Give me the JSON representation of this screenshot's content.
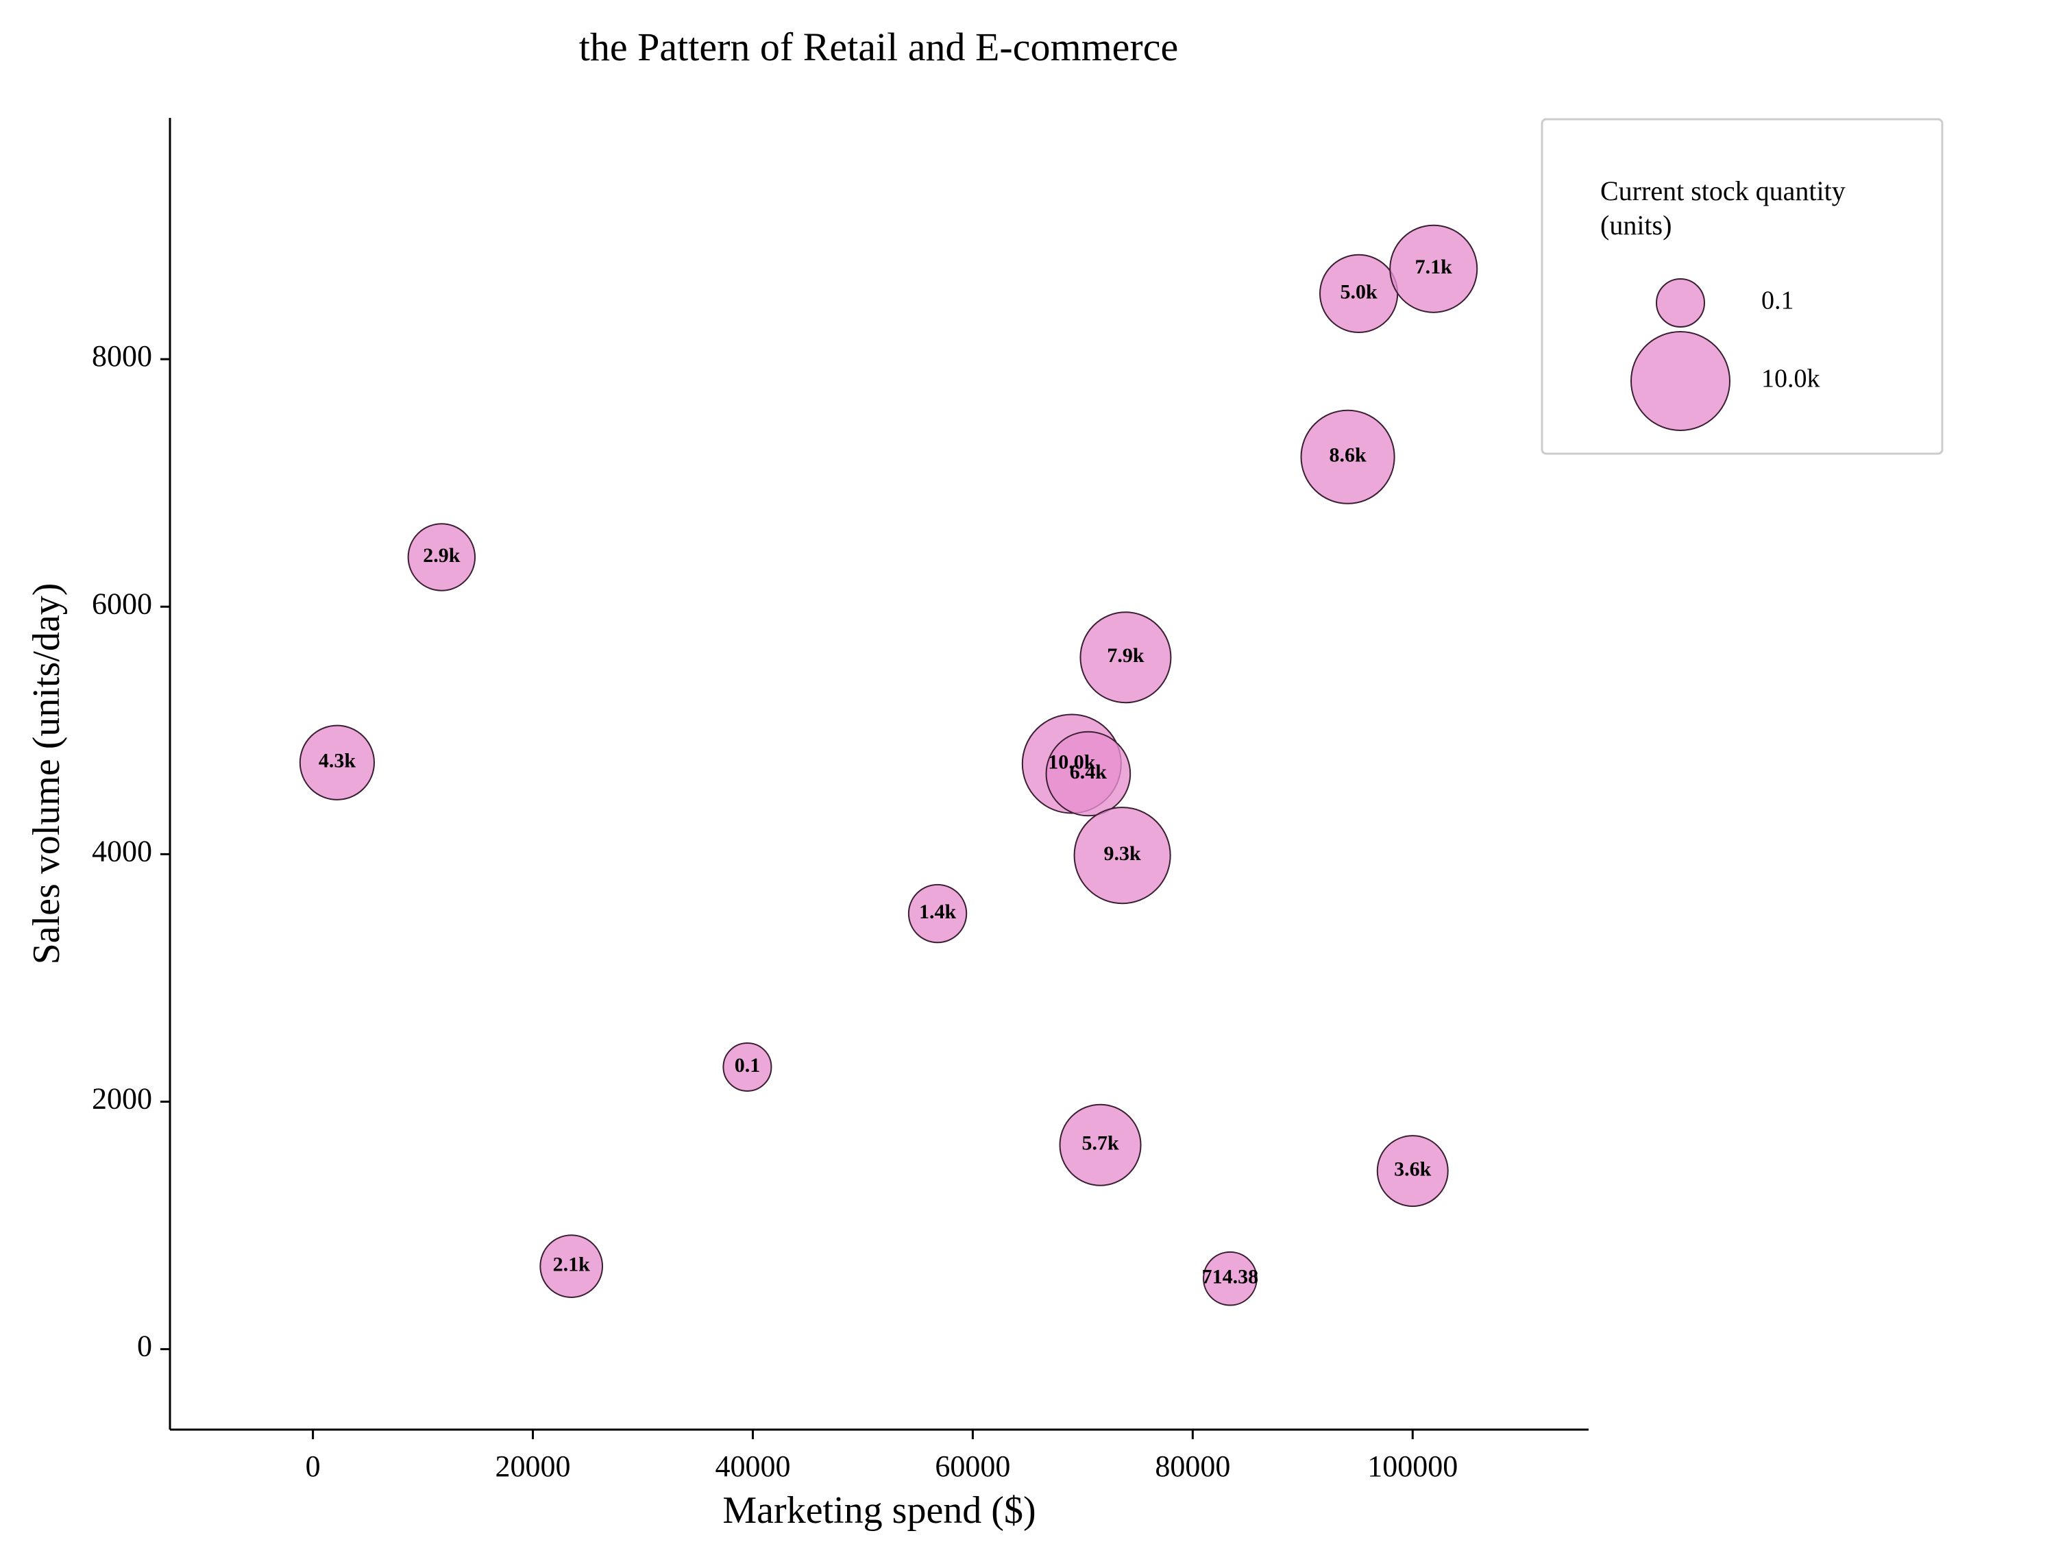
{
  "chart_data": {
    "type": "scatter",
    "subtype": "bubble",
    "title": "the Pattern of Retail and E-commerce",
    "xlabel": "Marketing spend ($)",
    "ylabel": "Sales volume (units/day)",
    "xlim": [
      -13000,
      116000
    ],
    "ylim": [
      -650,
      9950
    ],
    "x_ticks": [
      0,
      20000,
      40000,
      60000,
      80000,
      100000
    ],
    "y_ticks": [
      0,
      2000,
      4000,
      6000,
      8000
    ],
    "grid": false,
    "bubble_color": "#e88fcf",
    "bubble_edge_color": "#3a1f33",
    "size_metric": "Current stock quantity (units)",
    "points": [
      {
        "x": 2200,
        "y": 4740,
        "size": 4300,
        "label": "4.3k"
      },
      {
        "x": 11700,
        "y": 6400,
        "size": 2900,
        "label": "2.9k"
      },
      {
        "x": 23500,
        "y": 670,
        "size": 2100,
        "label": "2.1k"
      },
      {
        "x": 39500,
        "y": 2280,
        "size": 0.1,
        "label": "0.1"
      },
      {
        "x": 56800,
        "y": 3520,
        "size": 1400,
        "label": "1.4k"
      },
      {
        "x": 69000,
        "y": 4730,
        "size": 10000,
        "label": "10.0k"
      },
      {
        "x": 70500,
        "y": 4650,
        "size": 6400,
        "label": "6.4k"
      },
      {
        "x": 71600,
        "y": 1650,
        "size": 5700,
        "label": "5.7k"
      },
      {
        "x": 73600,
        "y": 3990,
        "size": 9300,
        "label": "9.3k"
      },
      {
        "x": 73900,
        "y": 5590,
        "size": 7900,
        "label": "7.9k"
      },
      {
        "x": 83400,
        "y": 570,
        "size": 714.38,
        "label": "714.38"
      },
      {
        "x": 94100,
        "y": 7210,
        "size": 8600,
        "label": "8.6k"
      },
      {
        "x": 95100,
        "y": 8530,
        "size": 5000,
        "label": "5.0k"
      },
      {
        "x": 100000,
        "y": 1440,
        "size": 3600,
        "label": "3.6k"
      },
      {
        "x": 101900,
        "y": 8730,
        "size": 7100,
        "label": "7.1k"
      }
    ],
    "legend": {
      "title": "Current stock quantity (units)",
      "placement": "upper-right",
      "entries": [
        {
          "size": 0.1,
          "label": "0.1"
        },
        {
          "size": 10000,
          "label": "10.0k"
        }
      ]
    }
  }
}
